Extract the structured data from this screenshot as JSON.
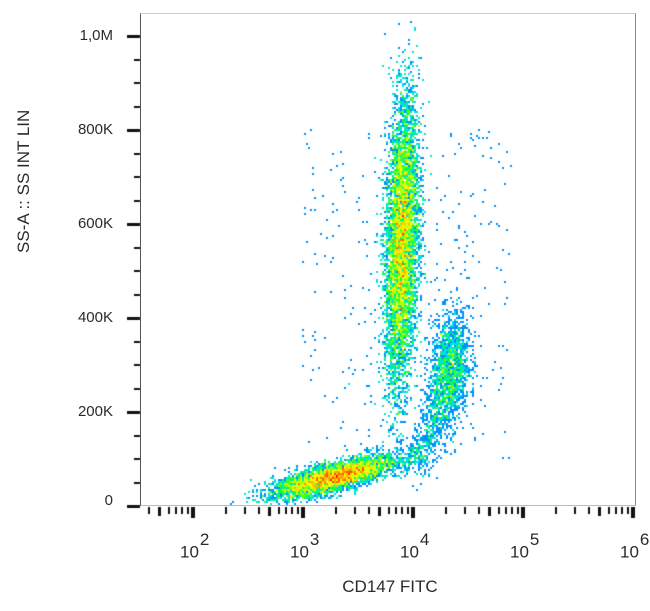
{
  "chart_data": {
    "type": "scatter",
    "subtype": "flow-cytometry-density-dot-plot",
    "title": "",
    "xlabel": "CD147 FITC",
    "ylabel": "SS-A :: SS INT LIN",
    "x_scale": "log",
    "x_range": [
      20,
      1000000
    ],
    "x_major_ticks": [
      100,
      1000,
      10000,
      100000,
      1000000
    ],
    "x_tick_labels": [
      {
        "base": "10",
        "exp": "2"
      },
      {
        "base": "10",
        "exp": "3"
      },
      {
        "base": "10",
        "exp": "4"
      },
      {
        "base": "10",
        "exp": "5"
      },
      {
        "base": "10",
        "exp": "6"
      }
    ],
    "y_scale": "linear",
    "y_range": [
      0,
      1050000
    ],
    "y_major_ticks": [
      0,
      200000,
      400000,
      600000,
      800000,
      1000000
    ],
    "y_tick_labels": [
      "0",
      "200K",
      "400K",
      "600K",
      "800K",
      "1,0M"
    ],
    "grid": false,
    "legend": null,
    "color_scale": [
      "#0000ff",
      "#0080ff",
      "#00e0e0",
      "#00ff40",
      "#c0ff00",
      "#ffff00",
      "#ff8000",
      "#ff0000"
    ],
    "populations": [
      {
        "name": "high-SS population",
        "center_x": 8100,
        "center_y": 560000,
        "sd_log_x": 0.075,
        "sd_y": 150000,
        "corr": 0.25,
        "count": 9000,
        "peak_color": "red"
      },
      {
        "name": "mid-SS population",
        "center_x": 22000,
        "center_y": 290000,
        "sd_log_x": 0.09,
        "sd_y": 60000,
        "corr": 0.2,
        "count": 1500,
        "peak_color": "cyan-green"
      },
      {
        "name": "low-SS population",
        "center_x": 2000,
        "center_y": 62000,
        "sd_log_x": 0.28,
        "sd_y": 22000,
        "corr": 0.75,
        "count": 5500,
        "peak_color": "red"
      }
    ],
    "noise_points": 350
  },
  "axes": {
    "x_title": "CD147 FITC",
    "y_title": "SS-A :: SS INT LIN"
  }
}
